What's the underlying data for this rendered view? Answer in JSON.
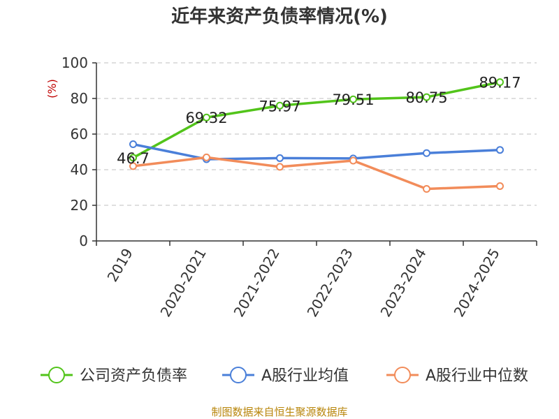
{
  "chart_data": {
    "type": "line",
    "title": "近年来资产负债率情况(%)",
    "ylabel": "(%)",
    "xlabel": "",
    "categories": [
      "2019",
      "2020-2021",
      "2021-2022",
      "2022-2023",
      "2023-2024",
      "2024-2025"
    ],
    "ylim": [
      0,
      100
    ],
    "yticks": [
      0,
      20,
      40,
      60,
      80,
      100
    ],
    "grid": true,
    "legend_position": "bottom",
    "series": [
      {
        "name": "公司资产负债率",
        "color": "#52c41a",
        "values": [
          46.7,
          69.32,
          75.97,
          79.51,
          80.75,
          89.17
        ],
        "labels": [
          "46.7",
          "69.32",
          "75.97",
          "79.51",
          "80.75",
          "89.17"
        ]
      },
      {
        "name": "A股行业均值",
        "color": "#4a7fd9",
        "values": [
          54.3,
          45.9,
          46.5,
          46.3,
          49.3,
          51.1
        ]
      },
      {
        "name": "A股行业中位数",
        "color": "#f28c5a",
        "values": [
          42.0,
          46.9,
          41.6,
          45.1,
          29.2,
          30.8
        ]
      }
    ],
    "source": "制图数据来自恒生聚源数据库"
  }
}
